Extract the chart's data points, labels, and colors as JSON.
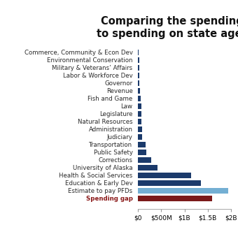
{
  "title": "Comparing the spending gap\nto spending on state agencies",
  "categories": [
    "Commerce, Community & Econ Dev",
    "Environmental Conservation",
    "Military & Veterans’ Affairs",
    "Labor & Workforce Dev",
    "Governor",
    "Revenue",
    "Fish and Game",
    "Law",
    "Legislature",
    "Natural Resources",
    "Administration",
    "Judiciary",
    "Transportation",
    "Public Safety",
    "Corrections",
    "University of Alaska",
    "Health & Social Services",
    "Education & Early Dev",
    "Estimate to pay PFDs",
    "Spending gap"
  ],
  "values": [
    18,
    20,
    22,
    25,
    30,
    38,
    60,
    65,
    70,
    75,
    80,
    90,
    170,
    175,
    280,
    420,
    1150,
    1350,
    1950,
    1600
  ],
  "bar_colors": [
    "#1b3a6b",
    "#1b3a6b",
    "#1b3a6b",
    "#1b3a6b",
    "#1b3a6b",
    "#1b3a6b",
    "#1b3a6b",
    "#1b3a6b",
    "#1b3a6b",
    "#1b3a6b",
    "#1b3a6b",
    "#1b3a6b",
    "#1b3a6b",
    "#1b3a6b",
    "#1b3a6b",
    "#1b3a6b",
    "#1b3a6b",
    "#1b3a6b",
    "#74afd3",
    "#7b1a1a"
  ],
  "xlim": [
    0,
    2000
  ],
  "xticks": [
    0,
    500,
    1000,
    1500,
    2000
  ],
  "xticklabels": [
    "$0",
    "$500M",
    "$1B",
    "$1.5B",
    "$2B"
  ],
  "last_label_color": "#8b1a1a",
  "background_color": "#ffffff",
  "title_fontsize": 10.5,
  "label_fontsize": 6.2,
  "tick_fontsize": 6.5
}
